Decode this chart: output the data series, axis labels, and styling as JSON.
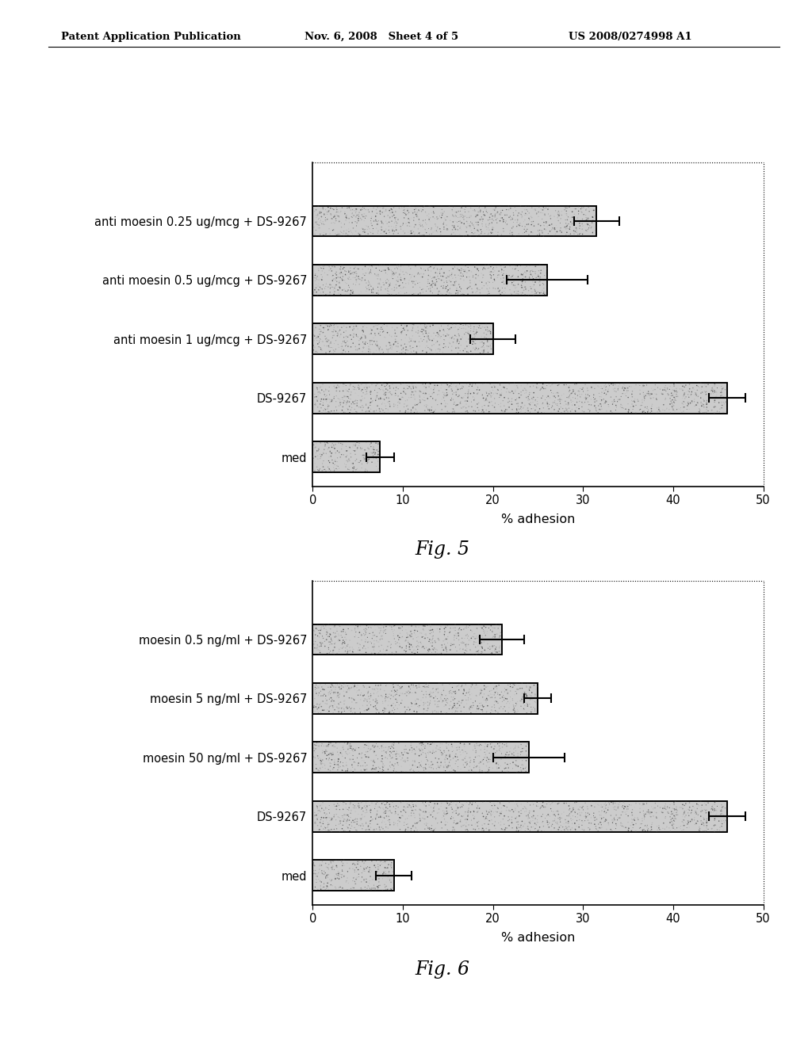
{
  "fig5": {
    "categories": [
      "anti moesin 0.25 ug/mcg + DS-9267",
      "anti moesin 0.5 ug/mcg + DS-9267",
      "anti moesin 1 ug/mcg + DS-9267",
      "DS-9267",
      "med"
    ],
    "values": [
      31.5,
      26.0,
      20.0,
      46.0,
      7.5
    ],
    "errors": [
      2.5,
      4.5,
      2.5,
      2.0,
      1.5
    ],
    "xlabel": "% adhesion",
    "xlim": [
      0,
      50
    ],
    "xticks": [
      0,
      10,
      20,
      30,
      40,
      50
    ],
    "fig_label": "Fig. 5"
  },
  "fig6": {
    "categories": [
      "moesin 0.5 ng/ml + DS-9267",
      "moesin 5 ng/ml + DS-9267",
      "moesin 50 ng/ml + DS-9267",
      "DS-9267",
      "med"
    ],
    "values": [
      21.0,
      25.0,
      24.0,
      46.0,
      9.0
    ],
    "errors": [
      2.5,
      1.5,
      4.0,
      2.0,
      2.0
    ],
    "xlabel": "% adhesion",
    "xlim": [
      0,
      50
    ],
    "xticks": [
      0,
      10,
      20,
      30,
      40,
      50
    ],
    "fig_label": "Fig. 6"
  },
  "header_left": "Patent Application Publication",
  "header_mid": "Nov. 6, 2008   Sheet 4 of 5",
  "header_right": "US 2008/0274998 A1",
  "background_color": "#ffffff"
}
